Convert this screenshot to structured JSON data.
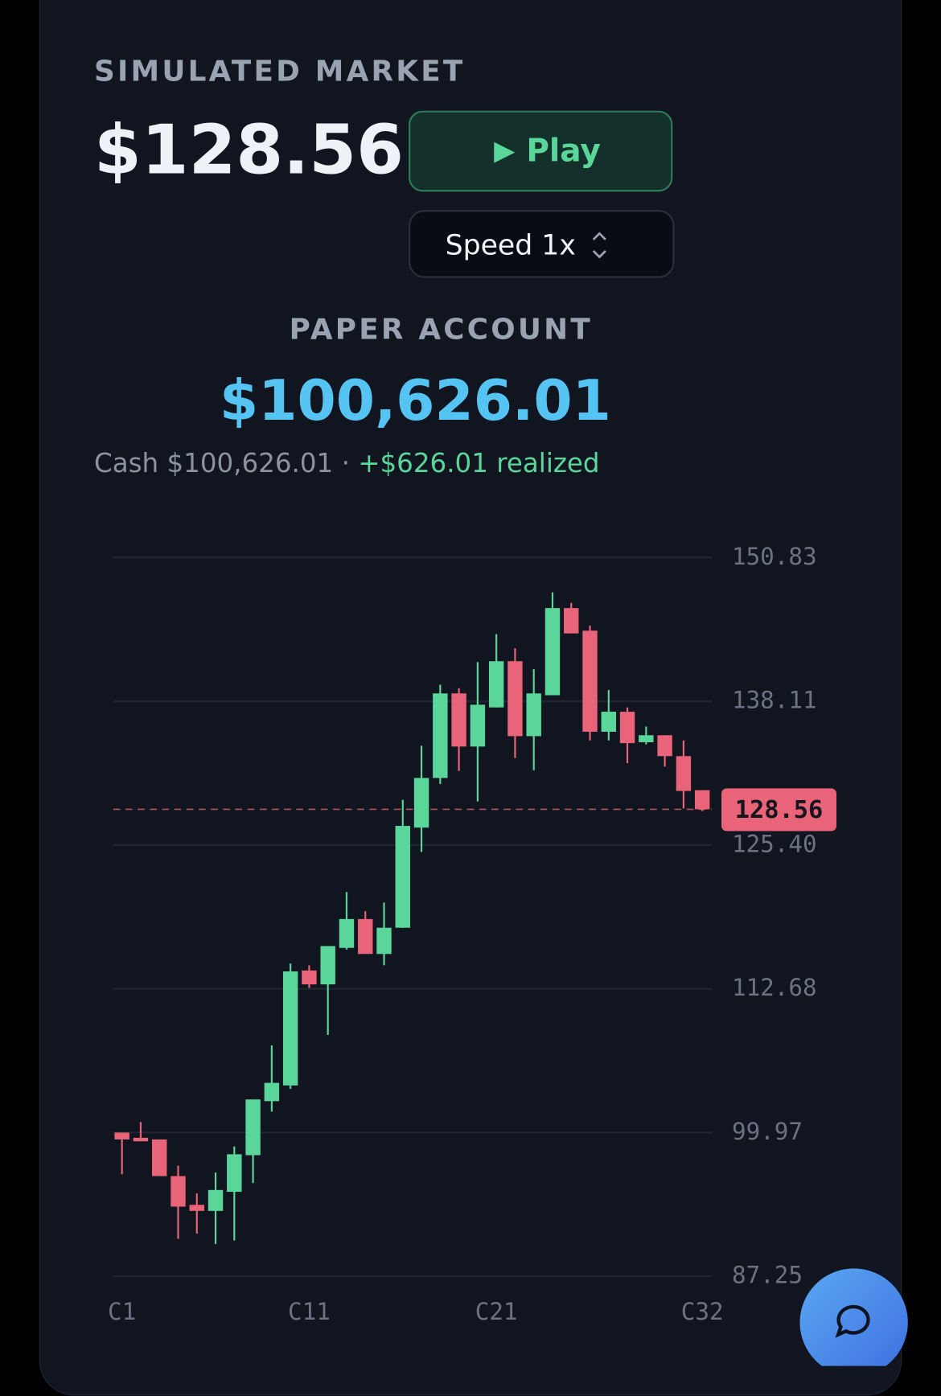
{
  "market": {
    "label": "SIMULATED MARKET",
    "price": "$128.56",
    "play": "Play",
    "speed": "Speed 1x"
  },
  "account": {
    "label": "PAPER ACCOUNT",
    "equity": "$100,626.01",
    "cash": "Cash $100,626.01",
    "separator": "·",
    "realized": "+$626.01 realized"
  },
  "chart_data": {
    "type": "candlestick",
    "categories": [
      "C1",
      null,
      null,
      null,
      null,
      null,
      null,
      null,
      null,
      null,
      "C11",
      null,
      null,
      null,
      null,
      null,
      null,
      null,
      null,
      null,
      "C21",
      null,
      null,
      null,
      null,
      null,
      null,
      null,
      null,
      null,
      null,
      "C32"
    ],
    "open": [
      99.96,
      99.5,
      99.35,
      96.11,
      93.57,
      93.03,
      94.72,
      97.96,
      102.74,
      104.13,
      114.3,
      113.07,
      116.3,
      118.85,
      115.76,
      118.08,
      126.94,
      131.33,
      138.81,
      134.11,
      137.57,
      141.66,
      135.03,
      138.65,
      146.36,
      144.36,
      135.42,
      137.19,
      134.49,
      135.11,
      133.26,
      130.25
    ],
    "high": [
      99.96,
      100.89,
      99.35,
      97.04,
      94.57,
      96.42,
      98.73,
      102.89,
      107.67,
      114.92,
      114.76,
      116.46,
      121.24,
      119.54,
      120.31,
      129.4,
      134.18,
      139.58,
      139.27,
      141.58,
      144.05,
      142.81,
      140.96,
      147.75,
      146.82,
      144.82,
      139.12,
      137.57,
      135.88,
      135.11,
      134.65,
      130.25
    ],
    "low": [
      96.27,
      99.19,
      96.11,
      90.56,
      91.02,
      90.1,
      90.41,
      95.49,
      101.81,
      103.82,
      112.76,
      108.6,
      116.15,
      115.76,
      114.76,
      118.08,
      124.78,
      130.79,
      131.95,
      129.25,
      137.57,
      133.1,
      132.02,
      138.65,
      144.12,
      134.65,
      134.65,
      132.64,
      134.3,
      132.33,
      128.63,
      128.41
    ],
    "close": [
      99.35,
      99.19,
      96.11,
      93.41,
      93.03,
      94.88,
      98.04,
      102.89,
      104.36,
      114.22,
      113.07,
      116.46,
      118.85,
      115.76,
      118.08,
      127.09,
      131.33,
      138.81,
      134.11,
      137.81,
      141.66,
      135.03,
      138.81,
      146.36,
      144.12,
      135.42,
      137.19,
      134.41,
      135.11,
      133.26,
      130.18,
      128.56
    ],
    "up_color": "#5bd69b",
    "down_color": "#ea6479",
    "last_price": 128.56,
    "ylim": [
      87.25,
      150.83
    ],
    "yticks": [
      87.25,
      99.97,
      112.68,
      {
        "value": 125.4,
        "label": "125.40"
      },
      138.11,
      150.83
    ],
    "grid": true
  }
}
